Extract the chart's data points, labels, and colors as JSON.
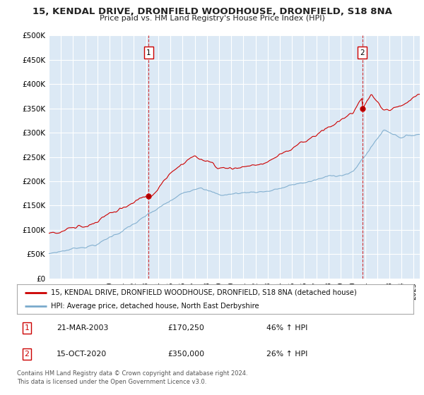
{
  "title": "15, KENDAL DRIVE, DRONFIELD WOODHOUSE, DRONFIELD, S18 8NA",
  "subtitle": "Price paid vs. HM Land Registry's House Price Index (HPI)",
  "ylabel_ticks": [
    "£0",
    "£50K",
    "£100K",
    "£150K",
    "£200K",
    "£250K",
    "£300K",
    "£350K",
    "£400K",
    "£450K",
    "£500K"
  ],
  "ytick_values": [
    0,
    50000,
    100000,
    150000,
    200000,
    250000,
    300000,
    350000,
    400000,
    450000,
    500000
  ],
  "ylim": [
    0,
    500000
  ],
  "sale1_x": 2003.22,
  "sale1_price": 170250,
  "sale1_date": "21-MAR-2003",
  "sale1_hpi": "46% ↑ HPI",
  "sale2_x": 2020.79,
  "sale2_price": 350000,
  "sale2_date": "15-OCT-2020",
  "sale2_hpi": "26% ↑ HPI",
  "red_line_color": "#cc0000",
  "blue_line_color": "#7aaacc",
  "plot_bg_color": "#dce9f5",
  "legend_label_red": "15, KENDAL DRIVE, DRONFIELD WOODHOUSE, DRONFIELD, S18 8NA (detached house)",
  "legend_label_blue": "HPI: Average price, detached house, North East Derbyshire",
  "footer1": "Contains HM Land Registry data © Crown copyright and database right 2024.",
  "footer2": "This data is licensed under the Open Government Licence v3.0.",
  "background_color": "#ffffff",
  "grid_color": "#ffffff"
}
